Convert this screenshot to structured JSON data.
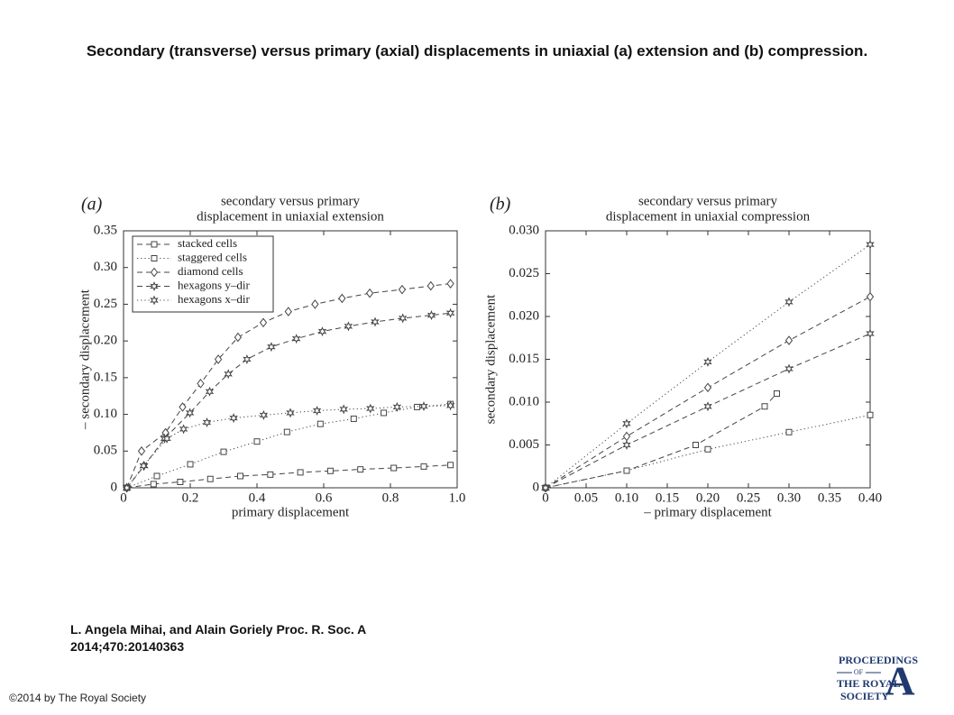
{
  "header": {
    "title": "Secondary (transverse) versus primary (axial) displacements in uniaxial (a) extension and (b) compression."
  },
  "chart_data": [
    {
      "type": "line",
      "panel_label": "(a)",
      "title_lines": [
        "secondary versus primary",
        "displacement in uniaxial extension"
      ],
      "x_label": "primary displacement",
      "y_label": "– secondary displacement",
      "xlim": [
        0,
        1
      ],
      "ylim": [
        0,
        0.35
      ],
      "xticks": [
        0,
        0.2,
        0.4,
        0.6,
        0.8,
        {
          "value": 1,
          "label": "1.0"
        }
      ],
      "yticks": [
        0,
        0.05,
        {
          "value": 0.1,
          "label": "0.10"
        },
        0.15,
        {
          "value": 0.2,
          "label": "0.20"
        },
        0.25,
        {
          "value": 0.3,
          "label": "0.30"
        },
        0.35
      ],
      "legend": "upper left",
      "series": [
        {
          "name": "stacked cells",
          "marker": "square",
          "dash": "dashed",
          "color": "#444",
          "x": [
            0.01,
            0.09,
            0.17,
            0.26,
            0.35,
            0.44,
            0.53,
            0.62,
            0.71,
            0.81,
            0.9,
            0.98
          ],
          "values": [
            0,
            0.005,
            0.008,
            0.012,
            0.016,
            0.018,
            0.021,
            0.023,
            0.025,
            0.027,
            0.029,
            0.031
          ]
        },
        {
          "name": "staggered cells",
          "marker": "square",
          "dash": "dotted",
          "color": "#444",
          "x": [
            0.01,
            0.1,
            0.2,
            0.3,
            0.4,
            0.49,
            0.59,
            0.69,
            0.78,
            0.88,
            0.98
          ],
          "values": [
            0,
            0.016,
            0.032,
            0.049,
            0.063,
            0.076,
            0.087,
            0.094,
            0.102,
            0.11,
            0.114
          ]
        },
        {
          "name": "diamond cells",
          "marker": "diamond",
          "dash": "dashed",
          "color": "#444",
          "x": [
            0.01,
            0.054,
            0.126,
            0.177,
            0.231,
            0.284,
            0.343,
            0.419,
            0.494,
            0.574,
            0.655,
            0.738,
            0.835,
            0.921,
            0.98
          ],
          "values": [
            0,
            0.05,
            0.075,
            0.11,
            0.142,
            0.175,
            0.205,
            0.225,
            0.24,
            0.25,
            0.258,
            0.265,
            0.27,
            0.275,
            0.278
          ]
        },
        {
          "name": "hexagons y–dir",
          "marker": "star",
          "dash": "dashed",
          "color": "#444",
          "x": [
            0.01,
            0.062,
            0.123,
            0.199,
            0.258,
            0.314,
            0.37,
            0.443,
            0.518,
            0.596,
            0.674,
            0.754,
            0.837,
            0.923,
            0.98
          ],
          "values": [
            0,
            0.03,
            0.067,
            0.102,
            0.131,
            0.155,
            0.175,
            0.192,
            0.203,
            0.213,
            0.22,
            0.226,
            0.231,
            0.235,
            0.238
          ]
        },
        {
          "name": "hexagons x–dir",
          "marker": "star",
          "dash": "dotted",
          "color": "#444",
          "x": [
            0.01,
            0.06,
            0.13,
            0.18,
            0.25,
            0.33,
            0.42,
            0.5,
            0.58,
            0.66,
            0.74,
            0.82,
            0.9,
            0.98
          ],
          "values": [
            0,
            0.03,
            0.067,
            0.08,
            0.089,
            0.095,
            0.099,
            0.102,
            0.105,
            0.107,
            0.108,
            0.11,
            0.111,
            0.112
          ]
        }
      ]
    },
    {
      "type": "line",
      "panel_label": "(b)",
      "title_lines": [
        "secondary versus primary",
        "displacement in uniaxial compression"
      ],
      "x_label": "– primary displacement",
      "y_label": "secondary displacement",
      "xlim": [
        0,
        0.4
      ],
      "ylim": [
        0,
        0.03
      ],
      "xticks": [
        0,
        0.05,
        {
          "value": 0.1,
          "label": "0.10"
        },
        0.15,
        {
          "value": 0.2,
          "label": "0.20"
        },
        0.25,
        {
          "value": 0.3,
          "label": "0.30"
        },
        0.35,
        {
          "value": 0.4,
          "label": "0.40"
        }
      ],
      "yticks": [
        0,
        0.005,
        {
          "value": 0.01,
          "label": "0.010"
        },
        0.015,
        {
          "value": 0.02,
          "label": "0.020"
        },
        0.025,
        {
          "value": 0.03,
          "label": "0.030"
        }
      ],
      "series": [
        {
          "marker": "square",
          "dash": "dashed",
          "color": "#444",
          "x": [
            0,
            0.1,
            0.185,
            0.27,
            0.285
          ],
          "values": [
            0,
            0.002,
            0.005,
            0.0095,
            0.011
          ]
        },
        {
          "marker": "square",
          "dash": "dotted",
          "color": "#444",
          "x": [
            0,
            0.1,
            0.2,
            0.3,
            0.4
          ],
          "values": [
            0,
            0.002,
            0.0045,
            0.0065,
            0.0085
          ]
        },
        {
          "marker": "diamond",
          "dash": "dashed",
          "color": "#444",
          "x": [
            0,
            0.1,
            0.2,
            0.3,
            0.4
          ],
          "values": [
            0,
            0.006,
            0.0117,
            0.0172,
            0.0223
          ]
        },
        {
          "marker": "star",
          "dash": "dashed",
          "color": "#444",
          "x": [
            0,
            0.1,
            0.2,
            0.3,
            0.4
          ],
          "values": [
            0,
            0.005,
            0.0095,
            0.0139,
            0.018
          ]
        },
        {
          "marker": "star",
          "dash": "dotted",
          "color": "#444",
          "x": [
            0,
            0.1,
            0.2,
            0.3,
            0.4
          ],
          "values": [
            0,
            0.0075,
            0.0147,
            0.0217,
            0.0284
          ]
        }
      ]
    }
  ],
  "citation": [
    "L. Angela Mihai, and Alain Goriely Proc. R. Soc. A",
    "2014;470:20140363"
  ],
  "copyright": "©2014 by The Royal Society",
  "logo": [
    "PROCEEDINGS",
    "OF",
    "THE ROYAL",
    "SOCIETY",
    "A"
  ]
}
